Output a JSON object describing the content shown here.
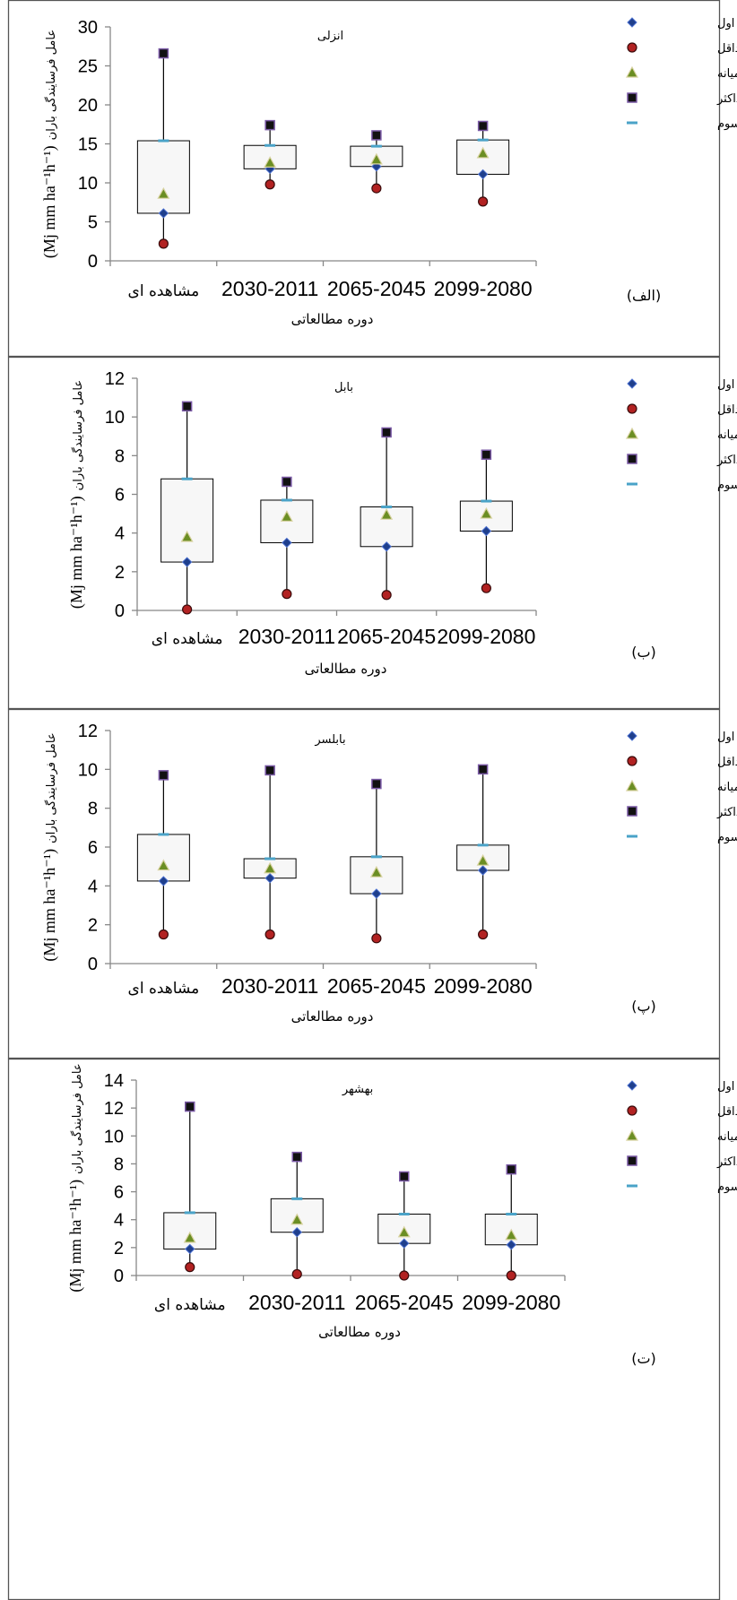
{
  "chart_data": [
    {
      "type": "box",
      "title": "انزلی",
      "panel_label": "(الف)",
      "xlabel": "دوره مطالعاتی",
      "ylabel": "عامل فرسایندگی باران (Mj mm ha-1h-1)",
      "ylabel_left": "عامل فرسایندگی باران",
      "ylabel_unit": "(Mj mm ha⁻¹h⁻¹)",
      "categories": [
        "مشاهده ای",
        "2030-2011",
        "2065-2045",
        "2099-2080"
      ],
      "ylim": [
        0,
        30
      ],
      "yticks": [
        0,
        5,
        10,
        15,
        20,
        25,
        30
      ],
      "series": [
        {
          "name": "چارک اول",
          "values": [
            6.1,
            11.8,
            12.1,
            11.1
          ]
        },
        {
          "name": "حداقل",
          "values": [
            2.2,
            9.8,
            9.3,
            7.6
          ]
        },
        {
          "name": "میانه",
          "values": [
            8.6,
            12.6,
            13.0,
            13.8
          ]
        },
        {
          "name": "حداکثر",
          "values": [
            26.6,
            17.4,
            16.1,
            17.3
          ]
        },
        {
          "name": "چارک سوم",
          "values": [
            15.4,
            14.8,
            14.7,
            15.5
          ]
        }
      ],
      "legend_position": "right"
    },
    {
      "type": "box",
      "title": "بابل",
      "panel_label": "(ب)",
      "xlabel": "دوره مطالعاتی",
      "ylabel": "عامل فرسایندگی باران (Mj mm ha-1h-1)",
      "ylabel_left": "عامل فرسایندگی باران",
      "ylabel_unit": "(Mj mm ha⁻¹h⁻¹)",
      "categories": [
        "مشاهده ای",
        "2030-2011",
        "2065-2045",
        "2099-2080"
      ],
      "ylim": [
        0,
        12
      ],
      "yticks": [
        0,
        2,
        4,
        6,
        8,
        10,
        12
      ],
      "series": [
        {
          "name": "چارک اول",
          "values": [
            2.5,
            3.5,
            3.3,
            4.1
          ]
        },
        {
          "name": "حداقل",
          "values": [
            0.05,
            0.85,
            0.8,
            1.15
          ]
        },
        {
          "name": "میانه",
          "values": [
            3.8,
            4.85,
            4.95,
            5.0
          ]
        },
        {
          "name": "حداکثر",
          "values": [
            10.55,
            6.65,
            9.2,
            8.05
          ]
        },
        {
          "name": "چارک سوم",
          "values": [
            6.8,
            5.7,
            5.35,
            5.65
          ]
        }
      ],
      "legend_position": "right"
    },
    {
      "type": "box",
      "title": "بابلسر",
      "panel_label": "(پ)",
      "xlabel": "دوره مطالعاتی",
      "ylabel": "عامل فرسایندگی باران (Mj mm ha-1h-1)",
      "ylabel_left": "عامل فرسایندگی باران",
      "ylabel_unit": "(Mj mm ha⁻¹h⁻¹)",
      "categories": [
        "مشاهده ای",
        "2030-2011",
        "2065-2045",
        "2099-2080"
      ],
      "ylim": [
        0,
        12
      ],
      "yticks": [
        0,
        2,
        4,
        6,
        8,
        10,
        12
      ],
      "series": [
        {
          "name": "چارک اول",
          "values": [
            4.25,
            4.4,
            3.6,
            4.8
          ]
        },
        {
          "name": "حداقل",
          "values": [
            1.5,
            1.5,
            1.3,
            1.5
          ]
        },
        {
          "name": "میانه",
          "values": [
            5.05,
            4.9,
            4.7,
            5.3
          ]
        },
        {
          "name": "حداکثر",
          "values": [
            9.7,
            9.95,
            9.25,
            10.0
          ]
        },
        {
          "name": "چارک سوم",
          "values": [
            6.65,
            5.4,
            5.5,
            6.1
          ]
        }
      ],
      "legend_position": "right"
    },
    {
      "type": "box",
      "title": "بهشهر",
      "panel_label": "(ت)",
      "xlabel": "دوره مطالعاتی",
      "ylabel": "عامل فرسایندگی باران (Mj mm ha-1h-1)",
      "ylabel_left": "عامل فرسایندگی باران",
      "ylabel_unit": "(Mj mm ha⁻¹h⁻¹)",
      "categories": [
        "مشاهده ای",
        "2030-2011",
        "2065-2045",
        "2099-2080"
      ],
      "ylim": [
        0,
        14
      ],
      "yticks": [
        0,
        2,
        4,
        6,
        8,
        10,
        12,
        14
      ],
      "series": [
        {
          "name": "چارک اول",
          "values": [
            1.9,
            3.1,
            2.3,
            2.2
          ]
        },
        {
          "name": "حداقل",
          "values": [
            0.6,
            0.1,
            0.0,
            0.0
          ]
        },
        {
          "name": "میانه",
          "values": [
            2.7,
            4.0,
            3.1,
            2.9
          ]
        },
        {
          "name": "حداکثر",
          "values": [
            12.1,
            8.5,
            7.1,
            7.6
          ]
        },
        {
          "name": "چارک سوم",
          "values": [
            4.5,
            5.5,
            4.4,
            4.4
          ]
        }
      ],
      "legend_position": "right"
    }
  ],
  "colors": {
    "q1": "#1f3f8c",
    "min": "#b22222",
    "median": "#6b8e23",
    "max": "#111111",
    "q3": "#4aa3c8",
    "box_fill": "#f7f7f7"
  }
}
